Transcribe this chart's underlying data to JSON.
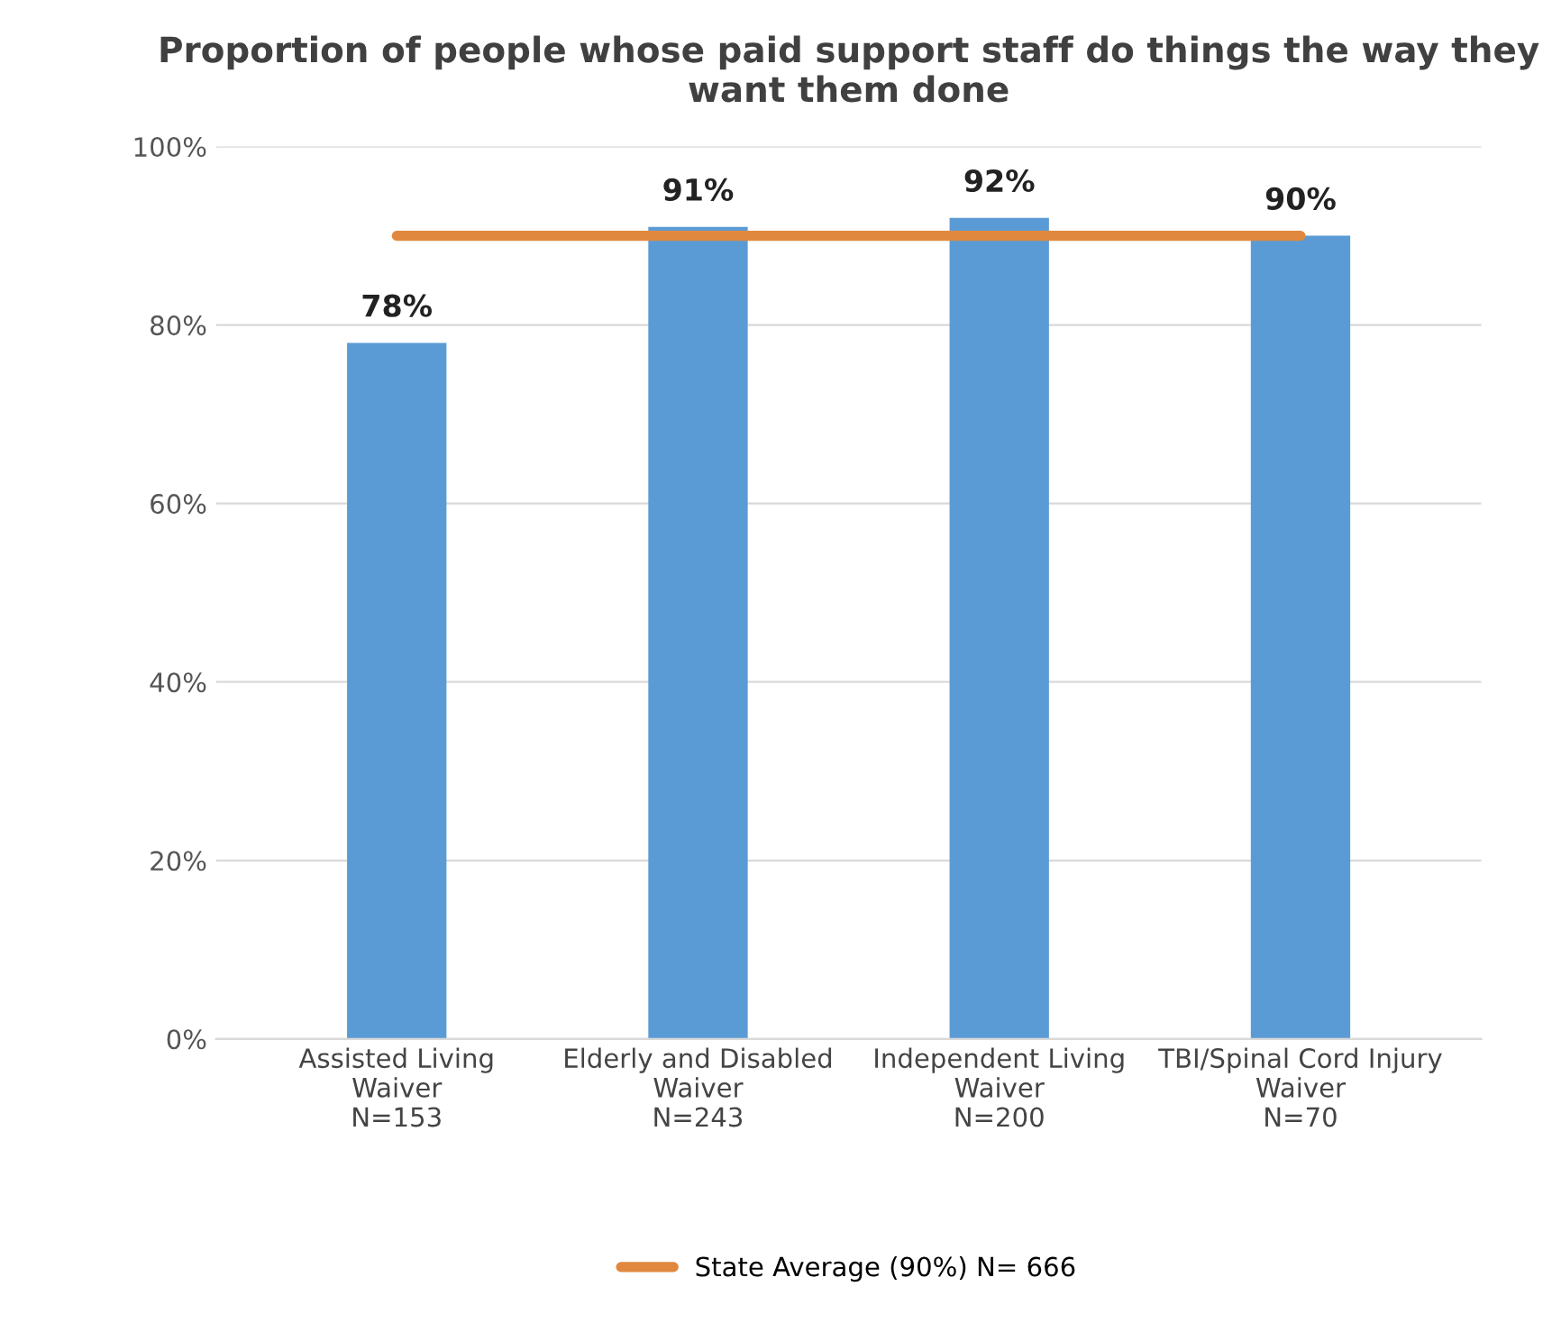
{
  "chart_data": {
    "type": "bar",
    "title": "Proportion of people whose paid support staff do things the way they want them done",
    "categories": [
      "Assisted Living\nWaiver\nN=153",
      "Elderly and Disabled\nWaiver\nN=243",
      "Independent Living\nWaiver\nN=200",
      "TBI/Spinal Cord Injury\nWaiver\nN=70"
    ],
    "series": [
      {
        "color": "#5b9bd5",
        "values": [
          78,
          91,
          92,
          90
        ],
        "value_labels": [
          "78%",
          "91%",
          "92%",
          "90%"
        ]
      },
      {
        "type": "line",
        "name": "State Average (90%) N= 666",
        "color": "#e0893e",
        "values": [
          90,
          90,
          90,
          90
        ]
      }
    ],
    "ylim": [
      0,
      100
    ],
    "yticks": [
      {
        "value": 0,
        "label": "0%"
      },
      {
        "value": 20,
        "label": "20%"
      },
      {
        "value": 40,
        "label": "40%"
      },
      {
        "value": 60,
        "label": "60%"
      },
      {
        "value": 80,
        "label": "80%"
      },
      {
        "value": 100,
        "label": "100%"
      }
    ],
    "grid": "y",
    "legend": "bottom",
    "marker": "none",
    "line_style": "solid"
  }
}
